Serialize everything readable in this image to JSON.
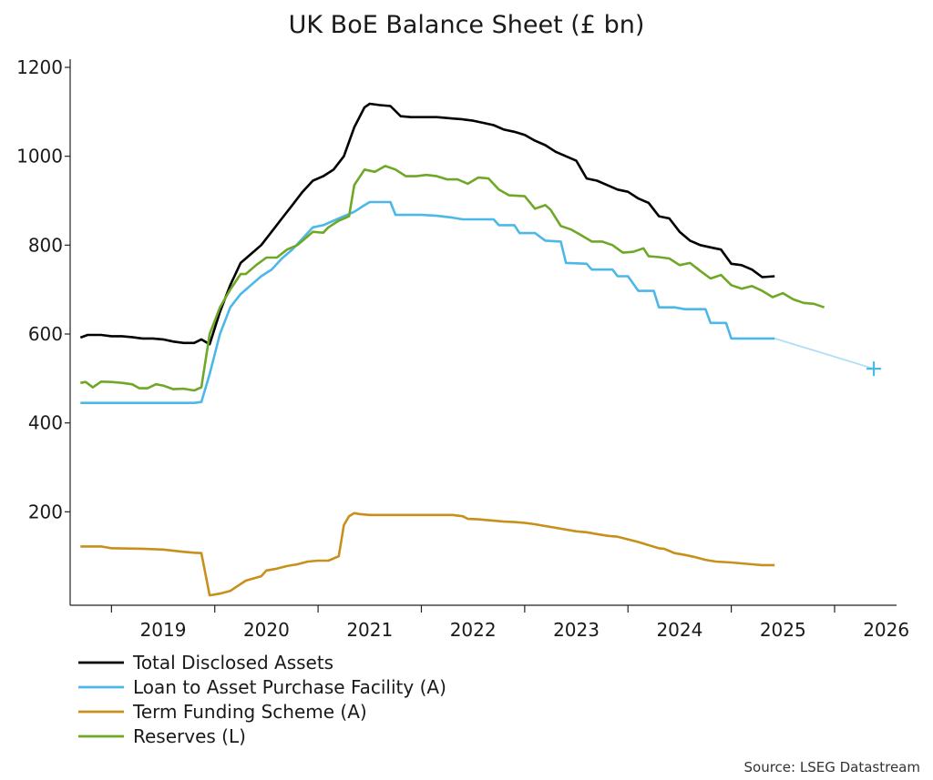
{
  "chart_data": {
    "type": "line",
    "title": "UK BoE Balance Sheet (£ bn)",
    "source": "Source: LSEG Datastream",
    "y_ticks": [
      200,
      400,
      600,
      800,
      1000,
      1200
    ],
    "ylim": [
      0,
      1200
    ],
    "xlim": [
      2018.6,
      2026.6
    ],
    "x_ticks": [
      "2019",
      "2020",
      "2021",
      "2022",
      "2023",
      "2024",
      "2025",
      "2026"
    ],
    "grid": false,
    "legend_position": "bottom-left",
    "series": [
      {
        "name": "Total Disclosed Assets",
        "color": "#000000",
        "points": [
          [
            2018.7,
            592
          ],
          [
            2018.77,
            598
          ],
          [
            2018.9,
            598
          ],
          [
            2019.0,
            595
          ],
          [
            2019.1,
            595
          ],
          [
            2019.2,
            593
          ],
          [
            2019.3,
            590
          ],
          [
            2019.4,
            590
          ],
          [
            2019.5,
            588
          ],
          [
            2019.6,
            583
          ],
          [
            2019.7,
            580
          ],
          [
            2019.8,
            580
          ],
          [
            2019.87,
            588
          ],
          [
            2019.95,
            577
          ],
          [
            2020.05,
            650
          ],
          [
            2020.15,
            710
          ],
          [
            2020.25,
            760
          ],
          [
            2020.35,
            780
          ],
          [
            2020.45,
            800
          ],
          [
            2020.55,
            830
          ],
          [
            2020.65,
            860
          ],
          [
            2020.75,
            890
          ],
          [
            2020.85,
            920
          ],
          [
            2020.95,
            945
          ],
          [
            2021.05,
            955
          ],
          [
            2021.15,
            970
          ],
          [
            2021.25,
            1000
          ],
          [
            2021.35,
            1065
          ],
          [
            2021.45,
            1110
          ],
          [
            2021.5,
            1118
          ],
          [
            2021.6,
            1115
          ],
          [
            2021.7,
            1113
          ],
          [
            2021.8,
            1090
          ],
          [
            2021.9,
            1088
          ],
          [
            2022.0,
            1088
          ],
          [
            2022.15,
            1088
          ],
          [
            2022.3,
            1085
          ],
          [
            2022.4,
            1083
          ],
          [
            2022.5,
            1080
          ],
          [
            2022.6,
            1075
          ],
          [
            2022.7,
            1070
          ],
          [
            2022.8,
            1060
          ],
          [
            2022.9,
            1055
          ],
          [
            2023.0,
            1048
          ],
          [
            2023.1,
            1035
          ],
          [
            2023.2,
            1025
          ],
          [
            2023.3,
            1010
          ],
          [
            2023.4,
            1000
          ],
          [
            2023.5,
            990
          ],
          [
            2023.6,
            950
          ],
          [
            2023.7,
            945
          ],
          [
            2023.8,
            935
          ],
          [
            2023.9,
            925
          ],
          [
            2024.0,
            920
          ],
          [
            2024.1,
            905
          ],
          [
            2024.2,
            895
          ],
          [
            2024.3,
            865
          ],
          [
            2024.4,
            860
          ],
          [
            2024.5,
            830
          ],
          [
            2024.6,
            810
          ],
          [
            2024.7,
            800
          ],
          [
            2024.8,
            795
          ],
          [
            2024.9,
            790
          ],
          [
            2025.0,
            758
          ],
          [
            2025.1,
            755
          ],
          [
            2025.2,
            745
          ],
          [
            2025.3,
            728
          ],
          [
            2025.42,
            730
          ]
        ]
      },
      {
        "name": "Loan to Asset Purchase Facility (A)",
        "color": "#4cb8e8",
        "points": [
          [
            2018.7,
            445
          ],
          [
            2019.0,
            445
          ],
          [
            2019.5,
            445
          ],
          [
            2019.8,
            445
          ],
          [
            2019.87,
            447
          ],
          [
            2019.95,
            510
          ],
          [
            2020.05,
            600
          ],
          [
            2020.15,
            660
          ],
          [
            2020.25,
            690
          ],
          [
            2020.35,
            710
          ],
          [
            2020.45,
            730
          ],
          [
            2020.55,
            745
          ],
          [
            2020.65,
            770
          ],
          [
            2020.75,
            790
          ],
          [
            2020.85,
            815
          ],
          [
            2020.95,
            840
          ],
          [
            2021.05,
            845
          ],
          [
            2021.15,
            855
          ],
          [
            2021.25,
            865
          ],
          [
            2021.35,
            875
          ],
          [
            2021.45,
            890
          ],
          [
            2021.5,
            897
          ],
          [
            2021.7,
            897
          ],
          [
            2021.75,
            868
          ],
          [
            2022.0,
            868
          ],
          [
            2022.15,
            866
          ],
          [
            2022.3,
            862
          ],
          [
            2022.4,
            858
          ],
          [
            2022.7,
            858
          ],
          [
            2022.75,
            845
          ],
          [
            2022.9,
            845
          ],
          [
            2022.95,
            827
          ],
          [
            2023.1,
            827
          ],
          [
            2023.2,
            810
          ],
          [
            2023.35,
            808
          ],
          [
            2023.4,
            760
          ],
          [
            2023.6,
            758
          ],
          [
            2023.65,
            745
          ],
          [
            2023.85,
            745
          ],
          [
            2023.9,
            730
          ],
          [
            2024.0,
            730
          ],
          [
            2024.1,
            697
          ],
          [
            2024.25,
            697
          ],
          [
            2024.3,
            660
          ],
          [
            2024.45,
            660
          ],
          [
            2024.55,
            656
          ],
          [
            2024.75,
            656
          ],
          [
            2024.8,
            625
          ],
          [
            2024.95,
            625
          ],
          [
            2025.0,
            590
          ],
          [
            2025.42,
            590
          ]
        ]
      },
      {
        "name": "Term Funding Scheme (A)",
        "color": "#c8901a",
        "points": [
          [
            2018.7,
            122
          ],
          [
            2018.9,
            122
          ],
          [
            2019.0,
            118
          ],
          [
            2019.3,
            117
          ],
          [
            2019.5,
            115
          ],
          [
            2019.7,
            110
          ],
          [
            2019.8,
            108
          ],
          [
            2019.87,
            107
          ],
          [
            2019.95,
            12
          ],
          [
            2020.05,
            16
          ],
          [
            2020.15,
            22
          ],
          [
            2020.2,
            30
          ],
          [
            2020.3,
            45
          ],
          [
            2020.45,
            55
          ],
          [
            2020.5,
            68
          ],
          [
            2020.6,
            72
          ],
          [
            2020.7,
            78
          ],
          [
            2020.8,
            82
          ],
          [
            2020.9,
            88
          ],
          [
            2021.0,
            90
          ],
          [
            2021.1,
            90
          ],
          [
            2021.2,
            100
          ],
          [
            2021.25,
            170
          ],
          [
            2021.3,
            190
          ],
          [
            2021.35,
            197
          ],
          [
            2021.4,
            195
          ],
          [
            2021.5,
            193
          ],
          [
            2021.8,
            193
          ],
          [
            2022.0,
            193
          ],
          [
            2022.2,
            193
          ],
          [
            2022.3,
            193
          ],
          [
            2022.4,
            190
          ],
          [
            2022.45,
            184
          ],
          [
            2022.55,
            183
          ],
          [
            2022.7,
            180
          ],
          [
            2022.8,
            178
          ],
          [
            2022.9,
            177
          ],
          [
            2023.0,
            175
          ],
          [
            2023.1,
            172
          ],
          [
            2023.2,
            168
          ],
          [
            2023.3,
            164
          ],
          [
            2023.4,
            160
          ],
          [
            2023.5,
            156
          ],
          [
            2023.6,
            154
          ],
          [
            2023.7,
            150
          ],
          [
            2023.8,
            146
          ],
          [
            2023.9,
            144
          ],
          [
            2024.0,
            138
          ],
          [
            2024.1,
            132
          ],
          [
            2024.2,
            125
          ],
          [
            2024.3,
            118
          ],
          [
            2024.35,
            117
          ],
          [
            2024.45,
            107
          ],
          [
            2024.55,
            103
          ],
          [
            2024.65,
            98
          ],
          [
            2024.75,
            92
          ],
          [
            2024.85,
            88
          ],
          [
            2025.0,
            86
          ],
          [
            2025.1,
            84
          ],
          [
            2025.2,
            82
          ],
          [
            2025.3,
            80
          ],
          [
            2025.42,
            80
          ]
        ]
      },
      {
        "name": "Reserves (L)",
        "color": "#6fa827",
        "points": [
          [
            2018.7,
            490
          ],
          [
            2018.75,
            492
          ],
          [
            2018.82,
            480
          ],
          [
            2018.9,
            493
          ],
          [
            2019.0,
            492
          ],
          [
            2019.1,
            490
          ],
          [
            2019.2,
            487
          ],
          [
            2019.27,
            478
          ],
          [
            2019.35,
            478
          ],
          [
            2019.43,
            487
          ],
          [
            2019.5,
            484
          ],
          [
            2019.6,
            476
          ],
          [
            2019.7,
            477
          ],
          [
            2019.8,
            473
          ],
          [
            2019.87,
            480
          ],
          [
            2019.95,
            600
          ],
          [
            2020.05,
            660
          ],
          [
            2020.15,
            700
          ],
          [
            2020.25,
            735
          ],
          [
            2020.3,
            735
          ],
          [
            2020.4,
            755
          ],
          [
            2020.5,
            772
          ],
          [
            2020.6,
            772
          ],
          [
            2020.7,
            790
          ],
          [
            2020.8,
            800
          ],
          [
            2020.9,
            820
          ],
          [
            2020.95,
            830
          ],
          [
            2021.05,
            828
          ],
          [
            2021.1,
            840
          ],
          [
            2021.2,
            855
          ],
          [
            2021.3,
            865
          ],
          [
            2021.35,
            935
          ],
          [
            2021.45,
            970
          ],
          [
            2021.55,
            965
          ],
          [
            2021.65,
            978
          ],
          [
            2021.75,
            970
          ],
          [
            2021.85,
            955
          ],
          [
            2021.95,
            955
          ],
          [
            2022.05,
            958
          ],
          [
            2022.15,
            955
          ],
          [
            2022.25,
            948
          ],
          [
            2022.35,
            948
          ],
          [
            2022.45,
            938
          ],
          [
            2022.55,
            952
          ],
          [
            2022.65,
            950
          ],
          [
            2022.75,
            925
          ],
          [
            2022.85,
            912
          ],
          [
            2023.0,
            910
          ],
          [
            2023.1,
            882
          ],
          [
            2023.2,
            890
          ],
          [
            2023.25,
            880
          ],
          [
            2023.35,
            843
          ],
          [
            2023.45,
            835
          ],
          [
            2023.55,
            822
          ],
          [
            2023.65,
            808
          ],
          [
            2023.75,
            808
          ],
          [
            2023.85,
            800
          ],
          [
            2023.95,
            783
          ],
          [
            2024.05,
            785
          ],
          [
            2024.15,
            793
          ],
          [
            2024.2,
            775
          ],
          [
            2024.3,
            773
          ],
          [
            2024.4,
            770
          ],
          [
            2024.5,
            755
          ],
          [
            2024.6,
            760
          ],
          [
            2024.7,
            742
          ],
          [
            2024.8,
            725
          ],
          [
            2024.9,
            733
          ],
          [
            2025.0,
            710
          ],
          [
            2025.1,
            702
          ],
          [
            2025.2,
            708
          ],
          [
            2025.3,
            697
          ],
          [
            2025.4,
            683
          ],
          [
            2025.5,
            692
          ],
          [
            2025.6,
            678
          ],
          [
            2025.7,
            670
          ],
          [
            2025.8,
            668
          ],
          [
            2025.9,
            660
          ]
        ]
      }
    ],
    "projection": {
      "color": "#4cb8e8",
      "from": [
        2025.42,
        590
      ],
      "to": [
        2026.38,
        522
      ]
    }
  }
}
